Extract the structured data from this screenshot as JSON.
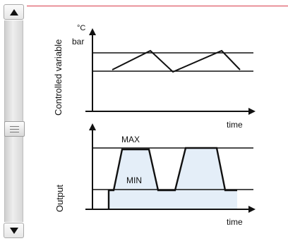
{
  "upper_chart": {
    "ylabel": "Controlled variable",
    "unit_1": "°C",
    "unit_2": "bar",
    "xlabel": "time"
  },
  "lower_chart": {
    "ylabel": "Output",
    "max_label": "MAX",
    "min_label": "MIN",
    "xlabel": "time"
  },
  "colors": {
    "fill": "#e4eef8",
    "accent_line": "#d83a4a"
  },
  "icons": {
    "scroll_up": "triangle-up-icon",
    "scroll_down": "triangle-down-icon",
    "scroll_grip": "grip-lines-icon"
  }
}
